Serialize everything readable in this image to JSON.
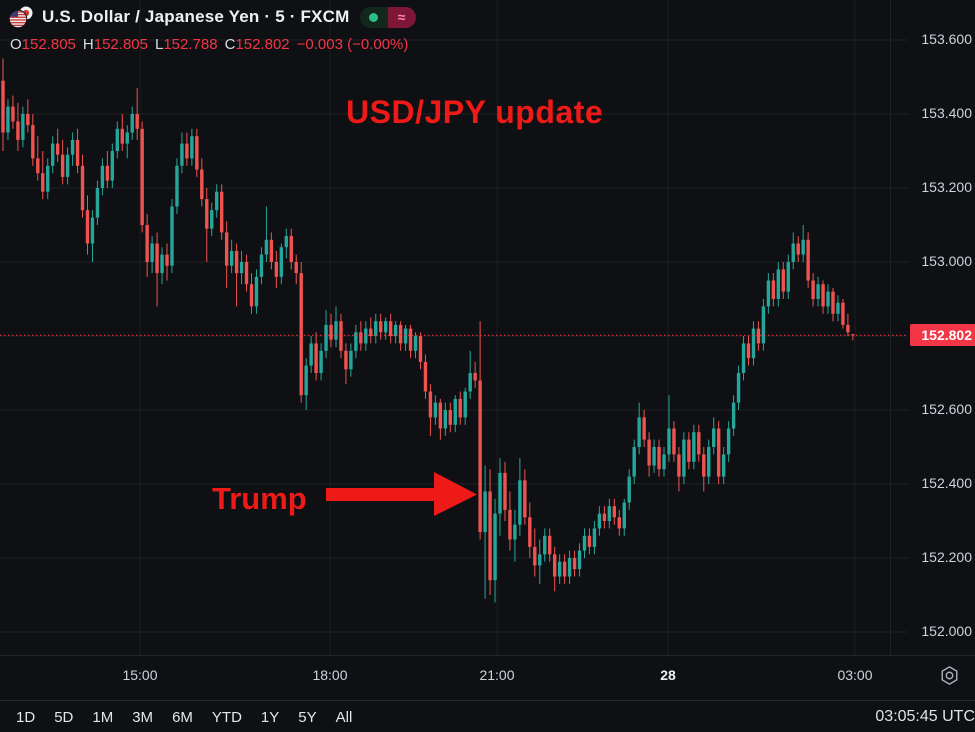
{
  "header": {
    "symbol_title": "U.S. Dollar / Japanese Yen · 5 · FXCM",
    "market_open_icon": "green-dot",
    "delayed_glyph": "≈",
    "ohlc": {
      "o_label": "O",
      "o_value": "152.805",
      "h_label": "H",
      "h_value": "152.805",
      "l_label": "L",
      "l_value": "152.788",
      "c_label": "C",
      "c_value": "152.802",
      "change": "−0.003 (−0.00%)"
    }
  },
  "annotations": {
    "update_text": "USD/JPY update",
    "event_text": "Trump",
    "color": "#ed1a17"
  },
  "toolbar": {
    "ranges": [
      "1D",
      "5D",
      "1M",
      "3M",
      "6M",
      "YTD",
      "1Y",
      "5Y",
      "All"
    ],
    "clock": "03:05:45 UTC"
  },
  "chart_data": {
    "type": "candlestick",
    "title": "U.S. Dollar / Japanese Yen",
    "interval": "5",
    "exchange": "FXCM",
    "timezone": "UTC",
    "last_price": 152.802,
    "last_price_label": "152.802",
    "last_candle": {
      "open": 152.805,
      "high": 152.805,
      "low": 152.788,
      "close": 152.802,
      "change": "−0.003",
      "change_pct": "−0.00%"
    },
    "y_axis": {
      "min": 152.0,
      "max": 153.6,
      "ticks": [
        "153.600",
        "153.400",
        "153.200",
        "153.000",
        "152.800",
        "152.600",
        "152.400",
        "152.200",
        "152.000"
      ]
    },
    "x_axis": {
      "ticks": [
        "15:00",
        "18:00",
        "21:00",
        "28",
        "03:00"
      ]
    },
    "grid": true,
    "colors": {
      "up": "#26a69a",
      "down": "#ef5350",
      "last_price": "#f23645"
    },
    "candles_ohlc": [
      [
        153.49,
        153.55,
        153.3,
        153.35
      ],
      [
        153.35,
        153.44,
        153.33,
        153.42
      ],
      [
        153.42,
        153.45,
        153.36,
        153.38
      ],
      [
        153.38,
        153.43,
        153.3,
        153.33
      ],
      [
        153.33,
        153.42,
        153.31,
        153.4
      ],
      [
        153.4,
        153.44,
        153.35,
        153.37
      ],
      [
        153.37,
        153.4,
        153.26,
        153.28
      ],
      [
        153.28,
        153.34,
        153.22,
        153.24
      ],
      [
        153.24,
        153.3,
        153.17,
        153.19
      ],
      [
        153.19,
        153.28,
        153.17,
        153.26
      ],
      [
        153.26,
        153.34,
        153.24,
        153.32
      ],
      [
        153.32,
        153.36,
        153.27,
        153.29
      ],
      [
        153.29,
        153.33,
        153.21,
        153.23
      ],
      [
        153.23,
        153.31,
        153.21,
        153.29
      ],
      [
        153.29,
        153.35,
        153.26,
        153.33
      ],
      [
        153.33,
        153.36,
        153.24,
        153.26
      ],
      [
        153.26,
        153.29,
        153.12,
        153.14
      ],
      [
        153.14,
        153.18,
        153.02,
        153.05
      ],
      [
        153.05,
        153.14,
        153.0,
        153.12
      ],
      [
        153.12,
        153.22,
        153.1,
        153.2
      ],
      [
        153.2,
        153.28,
        153.18,
        153.26
      ],
      [
        153.26,
        153.3,
        153.2,
        153.22
      ],
      [
        153.22,
        153.32,
        153.2,
        153.3
      ],
      [
        153.3,
        153.38,
        153.28,
        153.36
      ],
      [
        153.36,
        153.4,
        153.3,
        153.32
      ],
      [
        153.32,
        153.37,
        153.28,
        153.35
      ],
      [
        153.35,
        153.42,
        153.33,
        153.4
      ],
      [
        153.4,
        153.47,
        153.33,
        153.36
      ],
      [
        153.36,
        153.38,
        153.08,
        153.1
      ],
      [
        153.1,
        153.13,
        152.96,
        153.0
      ],
      [
        153.0,
        153.07,
        152.97,
        153.05
      ],
      [
        153.05,
        153.08,
        152.88,
        152.97
      ],
      [
        152.97,
        153.04,
        152.94,
        153.02
      ],
      [
        153.02,
        153.05,
        152.95,
        152.99
      ],
      [
        152.99,
        153.17,
        152.97,
        153.15
      ],
      [
        153.15,
        153.28,
        153.13,
        153.26
      ],
      [
        153.26,
        153.35,
        153.24,
        153.32
      ],
      [
        153.32,
        153.35,
        153.26,
        153.28
      ],
      [
        153.28,
        153.36,
        153.26,
        153.34
      ],
      [
        153.34,
        153.36,
        153.23,
        153.25
      ],
      [
        153.25,
        153.28,
        153.15,
        153.17
      ],
      [
        153.17,
        153.2,
        153.0,
        153.09
      ],
      [
        153.09,
        153.16,
        153.07,
        153.14
      ],
      [
        153.14,
        153.21,
        153.12,
        153.19
      ],
      [
        153.19,
        153.21,
        153.06,
        153.08
      ],
      [
        153.08,
        153.11,
        152.93,
        152.99
      ],
      [
        152.99,
        153.06,
        152.97,
        153.03
      ],
      [
        153.03,
        153.05,
        152.88,
        152.97
      ],
      [
        152.97,
        153.03,
        152.94,
        153.0
      ],
      [
        153.0,
        153.02,
        152.92,
        152.94
      ],
      [
        152.94,
        152.97,
        152.86,
        152.88
      ],
      [
        152.88,
        152.98,
        152.86,
        152.96
      ],
      [
        152.96,
        153.04,
        152.94,
        153.02
      ],
      [
        153.02,
        153.15,
        153.0,
        153.06
      ],
      [
        153.06,
        153.08,
        152.98,
        153.0
      ],
      [
        153.0,
        153.03,
        152.93,
        152.96
      ],
      [
        152.96,
        153.05,
        152.94,
        153.04
      ],
      [
        153.04,
        153.09,
        153.01,
        153.07
      ],
      [
        153.07,
        153.09,
        152.98,
        153.0
      ],
      [
        153.0,
        153.02,
        152.94,
        152.97
      ],
      [
        152.97,
        153.0,
        152.62,
        152.64
      ],
      [
        152.64,
        152.74,
        152.6,
        152.72
      ],
      [
        152.72,
        152.8,
        152.7,
        152.78
      ],
      [
        152.78,
        152.81,
        152.68,
        152.7
      ],
      [
        152.7,
        152.78,
        152.68,
        152.76
      ],
      [
        152.76,
        152.87,
        152.74,
        152.83
      ],
      [
        152.83,
        152.86,
        152.77,
        152.79
      ],
      [
        152.79,
        152.88,
        152.77,
        152.84
      ],
      [
        152.84,
        152.86,
        152.74,
        152.76
      ],
      [
        152.76,
        152.78,
        152.67,
        152.71
      ],
      [
        152.71,
        152.78,
        152.69,
        152.76
      ],
      [
        152.76,
        152.83,
        152.74,
        152.81
      ],
      [
        152.81,
        152.84,
        152.76,
        152.78
      ],
      [
        152.78,
        152.84,
        152.76,
        152.82
      ],
      [
        152.82,
        152.85,
        152.78,
        152.8
      ],
      [
        152.8,
        152.86,
        152.78,
        152.84
      ],
      [
        152.84,
        152.86,
        152.79,
        152.81
      ],
      [
        152.81,
        152.85,
        152.79,
        152.84
      ],
      [
        152.84,
        152.86,
        152.78,
        152.8
      ],
      [
        152.8,
        152.84,
        152.78,
        152.83
      ],
      [
        152.83,
        152.84,
        152.76,
        152.78
      ],
      [
        152.78,
        152.83,
        152.76,
        152.82
      ],
      [
        152.82,
        152.83,
        152.74,
        152.76
      ],
      [
        152.76,
        152.81,
        152.74,
        152.8
      ],
      [
        152.8,
        152.81,
        152.71,
        152.73
      ],
      [
        152.73,
        152.75,
        152.63,
        152.65
      ],
      [
        152.65,
        152.67,
        152.53,
        152.58
      ],
      [
        152.58,
        152.64,
        152.56,
        152.62
      ],
      [
        152.62,
        152.63,
        152.52,
        152.55
      ],
      [
        152.55,
        152.62,
        152.53,
        152.6
      ],
      [
        152.6,
        152.62,
        152.54,
        152.56
      ],
      [
        152.56,
        152.64,
        152.54,
        152.63
      ],
      [
        152.63,
        152.65,
        152.56,
        152.58
      ],
      [
        152.58,
        152.66,
        152.56,
        152.65
      ],
      [
        152.65,
        152.76,
        152.63,
        152.7
      ],
      [
        152.7,
        152.73,
        152.66,
        152.68
      ],
      [
        152.68,
        152.84,
        152.25,
        152.27
      ],
      [
        152.27,
        152.45,
        152.09,
        152.38
      ],
      [
        152.38,
        152.44,
        152.1,
        152.14
      ],
      [
        152.14,
        152.36,
        152.08,
        152.32
      ],
      [
        152.32,
        152.47,
        152.26,
        152.43
      ],
      [
        152.43,
        152.46,
        152.3,
        152.33
      ],
      [
        152.33,
        152.38,
        152.22,
        152.25
      ],
      [
        152.25,
        152.33,
        152.19,
        152.29
      ],
      [
        152.29,
        152.47,
        152.26,
        152.41
      ],
      [
        152.41,
        152.44,
        152.29,
        152.31
      ],
      [
        152.31,
        152.35,
        152.2,
        152.23
      ],
      [
        152.23,
        152.28,
        152.15,
        152.18
      ],
      [
        152.18,
        152.25,
        152.13,
        152.21
      ],
      [
        152.21,
        152.28,
        152.19,
        152.26
      ],
      [
        152.26,
        152.28,
        152.19,
        152.21
      ],
      [
        152.21,
        152.23,
        152.11,
        152.15
      ],
      [
        152.15,
        152.21,
        152.13,
        152.19
      ],
      [
        152.19,
        152.21,
        152.13,
        152.15
      ],
      [
        152.15,
        152.22,
        152.13,
        152.2
      ],
      [
        152.2,
        152.22,
        152.15,
        152.17
      ],
      [
        152.17,
        152.24,
        152.15,
        152.22
      ],
      [
        152.22,
        152.28,
        152.2,
        152.26
      ],
      [
        152.26,
        152.28,
        152.21,
        152.23
      ],
      [
        152.23,
        152.3,
        152.21,
        152.28
      ],
      [
        152.28,
        152.34,
        152.26,
        152.32
      ],
      [
        152.32,
        152.34,
        152.28,
        152.3
      ],
      [
        152.3,
        152.36,
        152.28,
        152.34
      ],
      [
        152.34,
        152.36,
        152.29,
        152.31
      ],
      [
        152.31,
        152.33,
        152.26,
        152.28
      ],
      [
        152.28,
        152.36,
        152.26,
        152.35
      ],
      [
        152.35,
        152.44,
        152.33,
        152.42
      ],
      [
        152.42,
        152.52,
        152.4,
        152.5
      ],
      [
        152.5,
        152.62,
        152.48,
        152.58
      ],
      [
        152.58,
        152.6,
        152.5,
        152.52
      ],
      [
        152.52,
        152.54,
        152.42,
        152.45
      ],
      [
        152.45,
        152.52,
        152.43,
        152.5
      ],
      [
        152.5,
        152.52,
        152.42,
        152.44
      ],
      [
        152.44,
        152.5,
        152.42,
        152.48
      ],
      [
        152.48,
        152.64,
        152.46,
        152.55
      ],
      [
        152.55,
        152.57,
        152.46,
        152.48
      ],
      [
        152.48,
        152.5,
        152.38,
        152.42
      ],
      [
        152.42,
        152.54,
        152.4,
        152.52
      ],
      [
        152.52,
        152.54,
        152.44,
        152.46
      ],
      [
        152.46,
        152.56,
        152.44,
        152.54
      ],
      [
        152.54,
        152.56,
        152.46,
        152.48
      ],
      [
        152.48,
        152.5,
        152.38,
        152.42
      ],
      [
        152.42,
        152.52,
        152.4,
        152.5
      ],
      [
        152.5,
        152.58,
        152.48,
        152.55
      ],
      [
        152.55,
        152.57,
        152.4,
        152.42
      ],
      [
        152.42,
        152.5,
        152.4,
        152.48
      ],
      [
        152.48,
        152.57,
        152.46,
        152.55
      ],
      [
        152.55,
        152.64,
        152.53,
        152.62
      ],
      [
        152.62,
        152.72,
        152.6,
        152.7
      ],
      [
        152.7,
        152.8,
        152.68,
        152.78
      ],
      [
        152.78,
        152.8,
        152.72,
        152.74
      ],
      [
        152.74,
        152.84,
        152.72,
        152.82
      ],
      [
        152.82,
        152.84,
        152.76,
        152.78
      ],
      [
        152.78,
        152.9,
        152.76,
        152.88
      ],
      [
        152.88,
        152.97,
        152.86,
        152.95
      ],
      [
        152.95,
        152.97,
        152.88,
        152.9
      ],
      [
        152.9,
        153.0,
        152.88,
        152.98
      ],
      [
        152.98,
        153.0,
        152.9,
        152.92
      ],
      [
        152.92,
        153.02,
        152.9,
        153.0
      ],
      [
        153.0,
        153.08,
        152.98,
        153.05
      ],
      [
        153.05,
        153.07,
        153.0,
        153.02
      ],
      [
        153.02,
        153.1,
        153.0,
        153.06
      ],
      [
        153.06,
        153.08,
        152.93,
        152.95
      ],
      [
        152.95,
        152.97,
        152.88,
        152.9
      ],
      [
        152.9,
        152.96,
        152.88,
        152.94
      ],
      [
        152.94,
        152.95,
        152.86,
        152.88
      ],
      [
        152.88,
        152.94,
        152.86,
        152.92
      ],
      [
        152.92,
        152.93,
        152.84,
        152.86
      ],
      [
        152.86,
        152.91,
        152.84,
        152.89
      ],
      [
        152.89,
        152.9,
        152.82,
        152.83
      ],
      [
        152.83,
        152.86,
        152.8,
        152.81
      ],
      [
        152.805,
        152.805,
        152.788,
        152.802
      ]
    ]
  }
}
